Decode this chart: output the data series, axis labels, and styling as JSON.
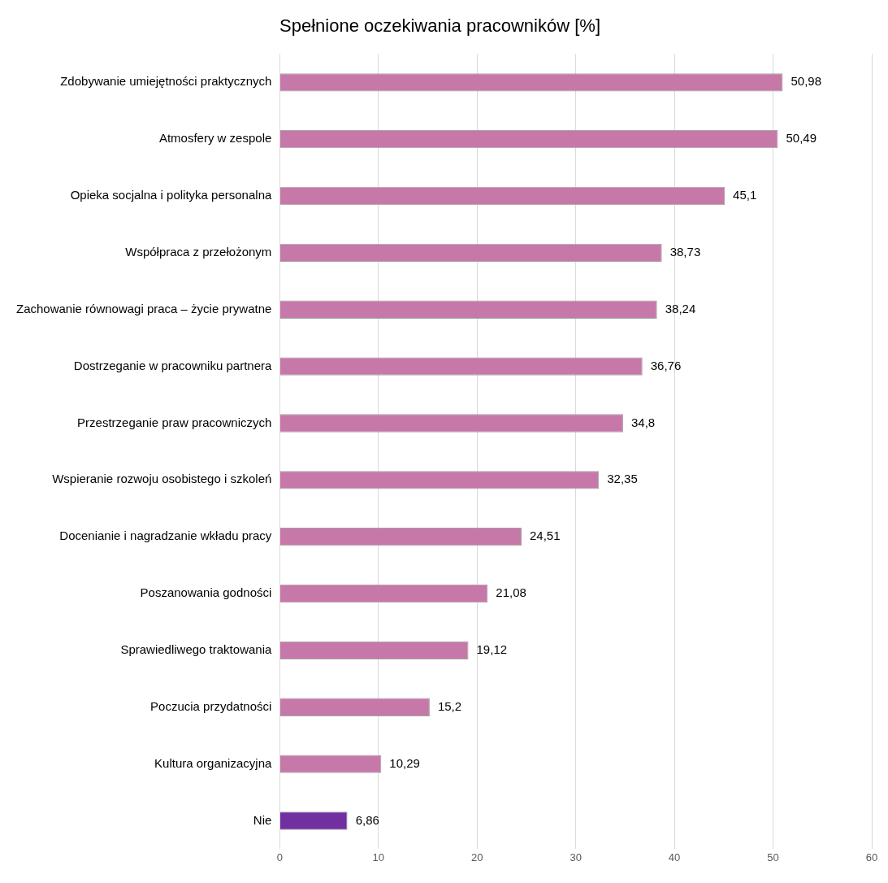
{
  "chart_data": {
    "type": "bar",
    "orientation": "horizontal",
    "title": "Spełnione oczekiwania pracowników [%]",
    "categories": [
      "Zdobywanie umiejętności praktycznych",
      "Atmosfery w zespole",
      "Opieka socjalna i polityka personalna",
      "Współpraca z przełożonym",
      "Zachowanie równowagi praca – życie prywatne",
      "Dostrzeganie w pracowniku partnera",
      "Przestrzeganie praw pracowniczych",
      "Wspieranie rozwoju osobistego i szkoleń",
      "Docenianie i nagradzanie wkładu pracy",
      "Poszanowania godności",
      "Sprawiedliwego traktowania",
      "Poczucia przydatności",
      "Kultura organizacyjna",
      "Nie"
    ],
    "values": [
      50.98,
      50.49,
      45.1,
      38.73,
      38.24,
      36.76,
      34.8,
      32.35,
      24.51,
      21.08,
      19.12,
      15.2,
      10.29,
      6.86
    ],
    "value_labels": [
      "50,98",
      "50,49",
      "45,1",
      "38,73",
      "38,24",
      "36,76",
      "34,8",
      "32,35",
      "24,51",
      "21,08",
      "19,12",
      "15,2",
      "10,29",
      "6,86"
    ],
    "colors": [
      "#c678a8",
      "#c678a8",
      "#c678a8",
      "#c678a8",
      "#c678a8",
      "#c678a8",
      "#c678a8",
      "#c678a8",
      "#c678a8",
      "#c678a8",
      "#c678a8",
      "#c678a8",
      "#c678a8",
      "#7030a0"
    ],
    "xlim": [
      0,
      60
    ],
    "xticks": [
      0,
      10,
      20,
      30,
      40,
      50,
      60
    ],
    "grid": "x"
  }
}
